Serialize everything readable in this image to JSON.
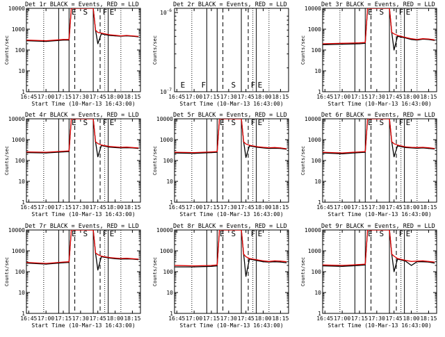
{
  "colors": {
    "background": "#ffffff",
    "events": "#000000",
    "lld": "#e00000"
  },
  "x_tick_labels": [
    "16:45",
    "17:00",
    "17:15",
    "17:30",
    "17:45",
    "18:00",
    "18:15"
  ],
  "x_label": "Start Time (10-Mar-13 16:43:00)",
  "y_label": "Counts/sec",
  "y_tick_labels": [
    "1",
    "10",
    "100",
    "1000",
    "10000"
  ],
  "chart_data": [
    {
      "type": "line",
      "title": "Det 1r BLACK = Events, RED = LLD",
      "y_scale": "log",
      "ylim": [
        1,
        10000
      ],
      "series": [
        {
          "name": "Events",
          "color": "#000000",
          "x": [
            "16:43",
            "17:00",
            "17:15",
            "17:20",
            "17:22",
            "17:25",
            "17:30",
            "17:35",
            "17:41",
            "17:43",
            "17:45",
            "17:48",
            "17:55",
            "18:00",
            "18:05",
            "18:10",
            "18:15",
            "18:20"
          ],
          "values": [
            280,
            260,
            300,
            300,
            10000,
            10000,
            10000,
            10000,
            10000,
            900,
            200,
            600,
            500,
            480,
            460,
            480,
            460,
            430
          ]
        },
        {
          "name": "LLD",
          "color": "#e00000",
          "x": [
            "16:43",
            "17:00",
            "17:15",
            "17:20",
            "17:22",
            "17:25",
            "17:30",
            "17:35",
            "17:41",
            "17:43",
            "17:45",
            "17:48",
            "17:55",
            "18:00",
            "18:05",
            "18:10",
            "18:15",
            "18:20"
          ],
          "values": [
            300,
            280,
            320,
            320,
            10000,
            10000,
            10000,
            10000,
            10000,
            900,
            700,
            650,
            540,
            510,
            480,
            500,
            480,
            450
          ]
        }
      ],
      "markers": [
        {
          "label": "E",
          "x": "17:21"
        },
        {
          "label": "S",
          "x": "17:31"
        },
        {
          "label": "F",
          "x": "17:48"
        },
        {
          "label": "E",
          "x": "17:54"
        }
      ]
    },
    {
      "type": "line",
      "title": "Det 2r BLACK = Events, RED = LLD",
      "y_scale": "log",
      "ylim": [
        1e-07,
        1e-06
      ],
      "series": [],
      "markers": [
        {
          "label": "E",
          "x": "16:47"
        },
        {
          "label": "F",
          "x": "17:05"
        },
        {
          "label": "S",
          "x": "17:31"
        },
        {
          "label": "F",
          "x": "17:48"
        },
        {
          "label": "E",
          "x": "17:54"
        }
      ]
    },
    {
      "type": "line",
      "title": "Det 3r BLACK = Events, RED = LLD",
      "y_scale": "log",
      "ylim": [
        1,
        10000
      ],
      "series": [
        {
          "name": "Events",
          "color": "#000000",
          "x": [
            "16:43",
            "17:00",
            "17:15",
            "17:20",
            "17:22",
            "17:25",
            "17:30",
            "17:35",
            "17:41",
            "17:43",
            "17:45",
            "17:48",
            "17:55",
            "18:00",
            "18:05",
            "18:10",
            "18:15",
            "18:20"
          ],
          "values": [
            180,
            190,
            200,
            210,
            10000,
            10000,
            10000,
            10000,
            10000,
            700,
            100,
            450,
            380,
            320,
            300,
            330,
            320,
            290
          ]
        },
        {
          "name": "LLD",
          "color": "#e00000",
          "x": [
            "16:43",
            "17:00",
            "17:15",
            "17:20",
            "17:22",
            "17:25",
            "17:30",
            "17:35",
            "17:41",
            "17:43",
            "17:45",
            "17:48",
            "17:55",
            "18:00",
            "18:05",
            "18:10",
            "18:15",
            "18:20"
          ],
          "values": [
            200,
            210,
            220,
            230,
            10000,
            10000,
            10000,
            10000,
            10000,
            700,
            600,
            500,
            400,
            350,
            320,
            350,
            340,
            310
          ]
        }
      ],
      "markers": [
        {
          "label": "E",
          "x": "17:21"
        },
        {
          "label": "S",
          "x": "17:31"
        },
        {
          "label": "F",
          "x": "17:48"
        },
        {
          "label": "E",
          "x": "17:54"
        }
      ]
    },
    {
      "type": "line",
      "title": "Det 4r BLACK = Events, RED = LLD",
      "y_scale": "log",
      "ylim": [
        1,
        10000
      ],
      "series": [
        {
          "name": "Events",
          "color": "#000000",
          "x": [
            "16:43",
            "17:00",
            "17:15",
            "17:20",
            "17:22",
            "17:25",
            "17:30",
            "17:35",
            "17:41",
            "17:43",
            "17:45",
            "17:48",
            "17:55",
            "18:00",
            "18:05",
            "18:10",
            "18:15",
            "18:20"
          ],
          "values": [
            240,
            230,
            260,
            270,
            10000,
            10000,
            10000,
            10000,
            10000,
            800,
            150,
            520,
            440,
            420,
            400,
            410,
            400,
            380
          ]
        },
        {
          "name": "LLD",
          "color": "#e00000",
          "x": [
            "16:43",
            "17:00",
            "17:15",
            "17:20",
            "17:22",
            "17:25",
            "17:30",
            "17:35",
            "17:41",
            "17:43",
            "17:45",
            "17:48",
            "17:55",
            "18:00",
            "18:05",
            "18:10",
            "18:15",
            "18:20"
          ],
          "values": [
            260,
            250,
            280,
            290,
            10000,
            10000,
            10000,
            10000,
            10000,
            800,
            650,
            560,
            470,
            450,
            430,
            440,
            420,
            400
          ]
        }
      ],
      "markers": [
        {
          "label": "E",
          "x": "17:21"
        },
        {
          "label": "S",
          "x": "17:31"
        },
        {
          "label": "F",
          "x": "17:48"
        },
        {
          "label": "E",
          "x": "17:54"
        }
      ]
    },
    {
      "type": "line",
      "title": "Det 5r BLACK = Events, RED = LLD",
      "y_scale": "log",
      "ylim": [
        1,
        10000
      ],
      "series": [
        {
          "name": "Events",
          "color": "#000000",
          "x": [
            "16:43",
            "17:00",
            "17:15",
            "17:20",
            "17:22",
            "17:25",
            "17:30",
            "17:35",
            "17:41",
            "17:43",
            "17:45",
            "17:48",
            "17:55",
            "18:00",
            "18:05",
            "18:10",
            "18:15",
            "18:20"
          ],
          "values": [
            230,
            220,
            240,
            250,
            10000,
            10000,
            10000,
            10000,
            10000,
            800,
            140,
            500,
            430,
            400,
            380,
            390,
            380,
            350
          ]
        },
        {
          "name": "LLD",
          "color": "#e00000",
          "x": [
            "16:43",
            "17:00",
            "17:15",
            "17:20",
            "17:22",
            "17:25",
            "17:30",
            "17:35",
            "17:41",
            "17:43",
            "17:45",
            "17:48",
            "17:55",
            "18:00",
            "18:05",
            "18:10",
            "18:15",
            "18:20"
          ],
          "values": [
            250,
            240,
            260,
            270,
            10000,
            10000,
            10000,
            10000,
            10000,
            800,
            620,
            540,
            460,
            430,
            410,
            420,
            400,
            370
          ]
        }
      ],
      "markers": [
        {
          "label": "E",
          "x": "17:21"
        },
        {
          "label": "S",
          "x": "17:31"
        },
        {
          "label": "F",
          "x": "17:48"
        },
        {
          "label": "E",
          "x": "17:54"
        }
      ]
    },
    {
      "type": "line",
      "title": "Det 6r BLACK = Events, RED = LLD",
      "y_scale": "log",
      "ylim": [
        1,
        10000
      ],
      "series": [
        {
          "name": "Events",
          "color": "#000000",
          "x": [
            "16:43",
            "17:00",
            "17:15",
            "17:20",
            "17:22",
            "17:25",
            "17:30",
            "17:35",
            "17:41",
            "17:43",
            "17:45",
            "17:48",
            "17:55",
            "18:00",
            "18:05",
            "18:10",
            "18:15",
            "18:20"
          ],
          "values": [
            230,
            210,
            240,
            250,
            10000,
            10000,
            10000,
            10000,
            10000,
            800,
            150,
            500,
            420,
            400,
            390,
            400,
            380,
            360
          ]
        },
        {
          "name": "LLD",
          "color": "#e00000",
          "x": [
            "16:43",
            "17:00",
            "17:15",
            "17:20",
            "17:22",
            "17:25",
            "17:30",
            "17:35",
            "17:41",
            "17:43",
            "17:45",
            "17:48",
            "17:55",
            "18:00",
            "18:05",
            "18:10",
            "18:15",
            "18:20"
          ],
          "values": [
            250,
            230,
            260,
            270,
            10000,
            10000,
            10000,
            10000,
            10000,
            800,
            640,
            550,
            450,
            430,
            420,
            430,
            410,
            380
          ]
        }
      ],
      "markers": [
        {
          "label": "E",
          "x": "17:21"
        },
        {
          "label": "S",
          "x": "17:31"
        },
        {
          "label": "F",
          "x": "17:48"
        },
        {
          "label": "E",
          "x": "17:54"
        }
      ]
    },
    {
      "type": "line",
      "title": "Det 7r BLACK = Events, RED = LLD",
      "y_scale": "log",
      "ylim": [
        1,
        10000
      ],
      "series": [
        {
          "name": "Events",
          "color": "#000000",
          "x": [
            "16:43",
            "17:00",
            "17:15",
            "17:20",
            "17:22",
            "17:25",
            "17:30",
            "17:35",
            "17:41",
            "17:43",
            "17:45",
            "17:48",
            "17:55",
            "18:00",
            "18:05",
            "18:10",
            "18:15",
            "18:20"
          ],
          "values": [
            260,
            230,
            270,
            280,
            10000,
            10000,
            10000,
            10000,
            10000,
            800,
            120,
            520,
            450,
            420,
            400,
            410,
            400,
            380
          ]
        },
        {
          "name": "LLD",
          "color": "#e00000",
          "x": [
            "16:43",
            "17:00",
            "17:15",
            "17:20",
            "17:22",
            "17:25",
            "17:30",
            "17:35",
            "17:41",
            "17:43",
            "17:45",
            "17:48",
            "17:55",
            "18:00",
            "18:05",
            "18:10",
            "18:15",
            "18:20"
          ],
          "values": [
            280,
            250,
            290,
            300,
            10000,
            10000,
            10000,
            10000,
            10000,
            800,
            660,
            560,
            480,
            450,
            430,
            440,
            420,
            400
          ]
        }
      ],
      "markers": [
        {
          "label": "E",
          "x": "17:21"
        },
        {
          "label": "S",
          "x": "17:31"
        },
        {
          "label": "F",
          "x": "17:48"
        },
        {
          "label": "E",
          "x": "17:54"
        }
      ]
    },
    {
      "type": "line",
      "title": "Det 8r BLACK = Events, RED = LLD",
      "y_scale": "log",
      "ylim": [
        1,
        10000
      ],
      "series": [
        {
          "name": "Events",
          "color": "#000000",
          "x": [
            "16:43",
            "17:00",
            "17:15",
            "17:20",
            "17:22",
            "17:25",
            "17:30",
            "17:35",
            "17:41",
            "17:43",
            "17:45",
            "17:48",
            "17:55",
            "18:00",
            "18:05",
            "18:10",
            "18:15",
            "18:20"
          ],
          "values": [
            170,
            170,
            180,
            190,
            10000,
            10000,
            10000,
            10000,
            10000,
            700,
            60,
            400,
            340,
            300,
            290,
            300,
            290,
            270
          ]
        },
        {
          "name": "LLD",
          "color": "#e00000",
          "x": [
            "16:43",
            "17:00",
            "17:15",
            "17:20",
            "17:22",
            "17:25",
            "17:30",
            "17:35",
            "17:41",
            "17:43",
            "17:45",
            "17:48",
            "17:55",
            "18:00",
            "18:05",
            "18:10",
            "18:15",
            "18:20"
          ],
          "values": [
            200,
            190,
            200,
            210,
            10000,
            10000,
            10000,
            10000,
            10000,
            700,
            520,
            430,
            370,
            330,
            310,
            330,
            320,
            300
          ]
        }
      ],
      "markers": [
        {
          "label": "E",
          "x": "17:21"
        },
        {
          "label": "S",
          "x": "17:31"
        },
        {
          "label": "F",
          "x": "17:48"
        },
        {
          "label": "E",
          "x": "17:54"
        }
      ]
    },
    {
      "type": "line",
      "title": "Det 9r BLACK = Events, RED = LLD",
      "y_scale": "log",
      "ylim": [
        1,
        10000
      ],
      "series": [
        {
          "name": "Events",
          "color": "#000000",
          "x": [
            "16:43",
            "17:00",
            "17:15",
            "17:20",
            "17:22",
            "17:25",
            "17:30",
            "17:35",
            "17:41",
            "17:43",
            "17:45",
            "17:48",
            "17:55",
            "18:00",
            "18:05",
            "18:10",
            "18:15",
            "18:20"
          ],
          "values": [
            190,
            180,
            200,
            210,
            10000,
            10000,
            10000,
            10000,
            10000,
            700,
            100,
            400,
            320,
            200,
            300,
            300,
            290,
            260
          ]
        },
        {
          "name": "LLD",
          "color": "#e00000",
          "x": [
            "16:43",
            "17:00",
            "17:15",
            "17:20",
            "17:22",
            "17:25",
            "17:30",
            "17:35",
            "17:41",
            "17:43",
            "17:45",
            "17:48",
            "17:55",
            "18:00",
            "18:05",
            "18:10",
            "18:15",
            "18:20"
          ],
          "values": [
            210,
            200,
            220,
            230,
            10000,
            10000,
            10000,
            10000,
            10000,
            700,
            560,
            430,
            350,
            310,
            320,
            330,
            310,
            290
          ]
        }
      ],
      "markers": [
        {
          "label": "E",
          "x": "17:21"
        },
        {
          "label": "S",
          "x": "17:31"
        },
        {
          "label": "F",
          "x": "17:48"
        },
        {
          "label": "E",
          "x": "17:54"
        }
      ]
    }
  ]
}
